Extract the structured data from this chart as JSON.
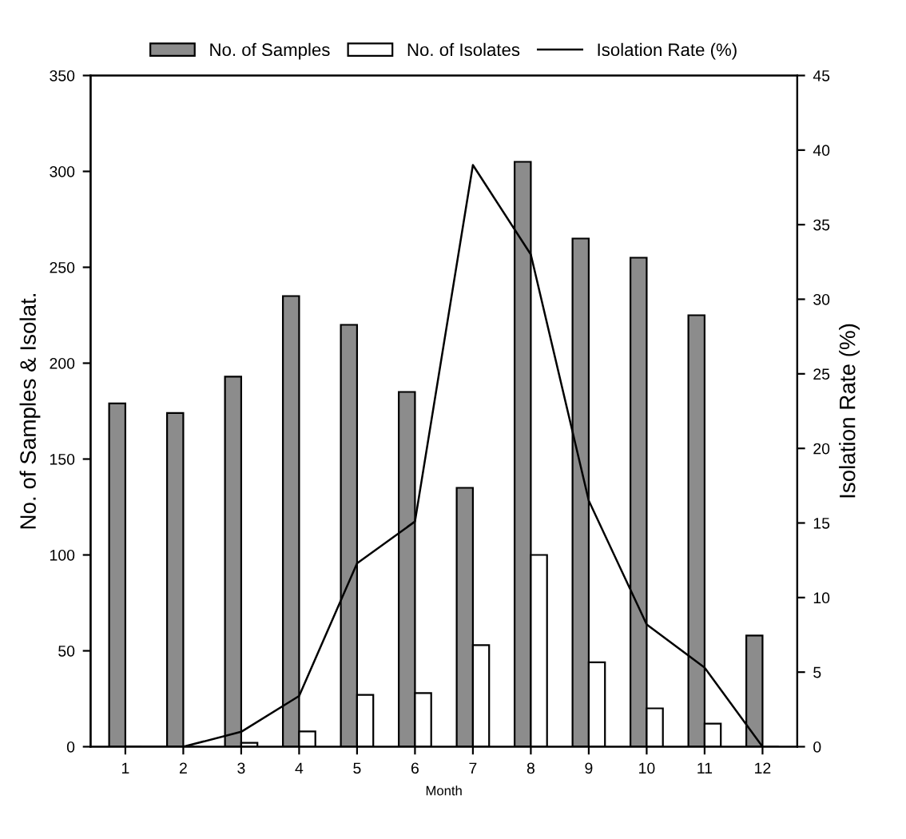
{
  "chart_data": {
    "type": "bar",
    "xlabel": "Month",
    "ylabel": "No. of Samples & Isolat.",
    "y2label": "Isolation Rate (%)",
    "categories": [
      "1",
      "2",
      "3",
      "4",
      "5",
      "6",
      "7",
      "8",
      "9",
      "10",
      "11",
      "12"
    ],
    "series": [
      {
        "name": "No. of Samples",
        "color": "#8c8c8c",
        "values": [
          179,
          174,
          193,
          235,
          220,
          185,
          135,
          305,
          265,
          255,
          225,
          58
        ]
      },
      {
        "name": "No. of Isolates",
        "color": "#ffffff",
        "values": [
          0,
          0,
          2,
          8,
          27,
          28,
          53,
          100,
          44,
          20,
          12,
          0
        ]
      },
      {
        "name": "Isolation Rate (%)",
        "type": "line",
        "axis": "y2",
        "color": "#000000",
        "line_style": "solid",
        "values": [
          0,
          0,
          1,
          3.4,
          12.3,
          15.1,
          39,
          33,
          16.5,
          8.2,
          5.3,
          0
        ]
      }
    ],
    "ylim": [
      0,
      350
    ],
    "yticks": [
      0,
      50,
      100,
      150,
      200,
      250,
      300,
      350
    ],
    "y2lim": [
      0,
      45
    ],
    "y2ticks": [
      0,
      5,
      10,
      15,
      20,
      25,
      30,
      35,
      40,
      45
    ],
    "legend": "top",
    "grid": false
  }
}
